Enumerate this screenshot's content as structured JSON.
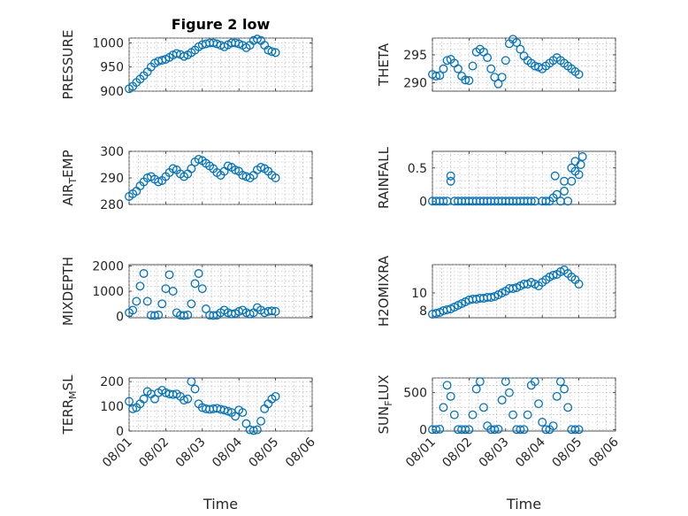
{
  "figure": {
    "accent_color": "#0072bd"
  },
  "chart_data": [
    {
      "type": "scatter",
      "title": "Figure 2 low",
      "ylabel": "PRESSURE",
      "xlabel": "",
      "ylim": [
        900,
        1010
      ],
      "yticks": [
        900,
        950,
        1000
      ],
      "xticks": [
        "08/01",
        "08/02",
        "08/03",
        "08/04",
        "08/05",
        "08/06"
      ],
      "show_xtick_labels": false,
      "grid": true,
      "x": [
        0,
        0.1,
        0.2,
        0.3,
        0.4,
        0.5,
        0.6,
        0.7,
        0.8,
        0.9,
        1.0,
        1.1,
        1.2,
        1.3,
        1.4,
        1.5,
        1.6,
        1.7,
        1.8,
        1.9,
        2.0,
        2.1,
        2.2,
        2.3,
        2.4,
        2.5,
        2.6,
        2.7,
        2.8,
        2.9,
        3.0,
        3.1,
        3.2,
        3.3,
        3.4,
        3.5,
        3.6,
        3.7,
        3.8,
        3.9,
        4.0
      ],
      "y": [
        905,
        910,
        918,
        925,
        932,
        940,
        950,
        958,
        962,
        964,
        966,
        970,
        975,
        978,
        976,
        972,
        975,
        980,
        985,
        992,
        996,
        998,
        1000,
        1000,
        998,
        995,
        992,
        996,
        1000,
        1000,
        998,
        995,
        990,
        995,
        1005,
        1008,
        1005,
        995,
        985,
        982,
        980
      ]
    },
    {
      "type": "scatter",
      "title": "",
      "ylabel": "THETA",
      "xlabel": "",
      "ylim": [
        288.5,
        298
      ],
      "yticks": [
        290,
        295
      ],
      "xticks": [
        "08/01",
        "08/02",
        "08/03",
        "08/04",
        "08/05",
        "08/06"
      ],
      "show_xtick_labels": false,
      "grid": true,
      "x": [
        0,
        0.1,
        0.2,
        0.3,
        0.4,
        0.5,
        0.6,
        0.7,
        0.8,
        0.9,
        1.0,
        1.1,
        1.2,
        1.3,
        1.4,
        1.5,
        1.6,
        1.7,
        1.8,
        1.9,
        2.0,
        2.1,
        2.2,
        2.3,
        2.4,
        2.5,
        2.6,
        2.7,
        2.8,
        2.9,
        3.0,
        3.1,
        3.2,
        3.3,
        3.4,
        3.5,
        3.6,
        3.7,
        3.8,
        3.9,
        4.0
      ],
      "y": [
        291.5,
        291.2,
        291.3,
        292.5,
        294,
        294.2,
        293.5,
        292.5,
        291.2,
        290.5,
        290.4,
        293,
        295.5,
        296,
        295.5,
        294.5,
        292.5,
        291,
        289.8,
        291,
        294,
        297,
        297.8,
        297.2,
        296,
        294.8,
        294,
        293.5,
        293,
        292.8,
        292.5,
        293,
        293.5,
        294,
        294.5,
        294,
        293.5,
        293,
        292.5,
        292,
        291.5
      ]
    },
    {
      "type": "scatter",
      "title": "",
      "ylabel": "AIR_TEMP",
      "xlabel": "",
      "ylim": [
        280,
        300
      ],
      "yticks": [
        280,
        290,
        300
      ],
      "xticks": [
        "08/01",
        "08/02",
        "08/03",
        "08/04",
        "08/05",
        "08/06"
      ],
      "show_xtick_labels": false,
      "grid": true,
      "x": [
        0,
        0.1,
        0.2,
        0.3,
        0.4,
        0.5,
        0.6,
        0.7,
        0.8,
        0.9,
        1.0,
        1.1,
        1.2,
        1.3,
        1.4,
        1.5,
        1.6,
        1.7,
        1.8,
        1.9,
        2.0,
        2.1,
        2.2,
        2.3,
        2.4,
        2.5,
        2.6,
        2.7,
        2.8,
        2.9,
        3.0,
        3.1,
        3.2,
        3.3,
        3.4,
        3.5,
        3.6,
        3.7,
        3.8,
        3.9,
        4.0
      ],
      "y": [
        283,
        284,
        285,
        287,
        288.5,
        290,
        290.5,
        289.5,
        288.5,
        289,
        290.5,
        292,
        293.5,
        293,
        291.5,
        290.5,
        291.5,
        293.5,
        296,
        297,
        296.5,
        295.5,
        294.5,
        293.5,
        292,
        291,
        292.5,
        294.5,
        294,
        293,
        292.5,
        291,
        290.5,
        290,
        291,
        293,
        294,
        293.5,
        292.5,
        291,
        290
      ]
    },
    {
      "type": "scatter",
      "title": "",
      "ylabel": "RAINFALL",
      "xlabel": "",
      "ylim": [
        -0.05,
        0.75
      ],
      "yticks": [
        0,
        0.5
      ],
      "xticks": [
        "08/01",
        "08/02",
        "08/03",
        "08/04",
        "08/05",
        "08/06"
      ],
      "show_xtick_labels": false,
      "grid": true,
      "x": [
        0,
        0.1,
        0.2,
        0.3,
        0.4,
        0.5,
        0.5,
        0.6,
        0.7,
        0.8,
        0.9,
        1.0,
        1.1,
        1.2,
        1.3,
        1.4,
        1.5,
        1.6,
        1.7,
        1.8,
        1.9,
        2.0,
        2.1,
        2.2,
        2.3,
        2.4,
        2.5,
        2.6,
        2.7,
        2.8,
        3.0,
        3.1,
        3.2,
        3.3,
        3.35,
        3.4,
        3.5,
        3.6,
        3.6,
        3.7,
        3.8,
        3.8,
        3.9,
        3.9,
        4.0,
        4.05,
        4.1
      ],
      "y": [
        0,
        0,
        0,
        0,
        0,
        0.3,
        0.38,
        0,
        0,
        0,
        0,
        0,
        0,
        0,
        0,
        0,
        0,
        0,
        0,
        0,
        0,
        0,
        0,
        0,
        0,
        0,
        0,
        0,
        0,
        0,
        0,
        0,
        0,
        0.05,
        0.38,
        0.1,
        0,
        0.3,
        0.15,
        0,
        0.5,
        0.3,
        0.45,
        0.6,
        0.4,
        0.55,
        0.67
      ]
    },
    {
      "type": "scatter",
      "title": "",
      "ylabel": "MIXDEPTH",
      "xlabel": "",
      "ylim": [
        -50,
        2050
      ],
      "yticks": [
        0,
        1000,
        2000
      ],
      "xticks": [
        "08/01",
        "08/02",
        "08/03",
        "08/04",
        "08/05",
        "08/06"
      ],
      "show_xtick_labels": false,
      "grid": true,
      "x": [
        0,
        0.1,
        0.2,
        0.3,
        0.4,
        0.5,
        0.6,
        0.7,
        0.8,
        0.9,
        1.0,
        1.1,
        1.2,
        1.3,
        1.4,
        1.5,
        1.6,
        1.7,
        1.8,
        1.9,
        2.0,
        2.1,
        2.2,
        2.3,
        2.4,
        2.5,
        2.6,
        2.7,
        2.8,
        2.9,
        3.0,
        3.1,
        3.2,
        3.3,
        3.4,
        3.5,
        3.6,
        3.7,
        3.8,
        3.9,
        4.0
      ],
      "y": [
        150,
        250,
        600,
        1200,
        1700,
        600,
        50,
        40,
        60,
        500,
        1100,
        1650,
        1000,
        150,
        50,
        40,
        60,
        500,
        1300,
        1700,
        1100,
        300,
        50,
        40,
        50,
        150,
        250,
        150,
        100,
        120,
        200,
        250,
        150,
        100,
        150,
        350,
        250,
        150,
        200,
        220,
        200
      ]
    },
    {
      "type": "scatter",
      "title": "",
      "ylabel": "H2OMIXRA",
      "xlabel": "",
      "ylim": [
        7.2,
        13.2
      ],
      "yticks": [
        8,
        10
      ],
      "xticks": [
        "08/01",
        "08/02",
        "08/03",
        "08/04",
        "08/05",
        "08/06"
      ],
      "show_xtick_labels": false,
      "grid": true,
      "x": [
        0,
        0.1,
        0.2,
        0.3,
        0.4,
        0.5,
        0.6,
        0.7,
        0.8,
        0.9,
        1.0,
        1.1,
        1.2,
        1.3,
        1.4,
        1.5,
        1.6,
        1.7,
        1.8,
        1.9,
        2.0,
        2.1,
        2.2,
        2.3,
        2.4,
        2.5,
        2.6,
        2.7,
        2.8,
        2.9,
        3.0,
        3.1,
        3.2,
        3.3,
        3.4,
        3.5,
        3.6,
        3.7,
        3.8,
        3.9,
        4.0
      ],
      "y": [
        7.6,
        7.7,
        7.8,
        8.0,
        8.1,
        8.2,
        8.4,
        8.6,
        8.8,
        9.0,
        9.2,
        9.3,
        9.3,
        9.4,
        9.4,
        9.5,
        9.5,
        9.6,
        9.8,
        10.0,
        10.2,
        10.5,
        10.5,
        10.6,
        10.8,
        11.0,
        11.0,
        11.2,
        11.0,
        10.8,
        11.2,
        11.5,
        11.8,
        12.0,
        12.1,
        12.4,
        12.6,
        12.2,
        11.8,
        11.5,
        11.0
      ]
    },
    {
      "type": "scatter",
      "title": "",
      "ylabel": "TERR_MSL",
      "xlabel": "Time",
      "ylim": [
        0,
        215
      ],
      "yticks": [
        0,
        100,
        200
      ],
      "xticks": [
        "08/01",
        "08/02",
        "08/03",
        "08/04",
        "08/05",
        "08/06"
      ],
      "show_xtick_labels": true,
      "grid": true,
      "x": [
        0,
        0.1,
        0.2,
        0.3,
        0.4,
        0.5,
        0.6,
        0.7,
        0.8,
        0.9,
        1.0,
        1.1,
        1.2,
        1.3,
        1.4,
        1.5,
        1.6,
        1.7,
        1.8,
        1.9,
        2.0,
        2.1,
        2.2,
        2.3,
        2.4,
        2.5,
        2.6,
        2.7,
        2.8,
        2.9,
        3.0,
        3.1,
        3.2,
        3.3,
        3.4,
        3.5,
        3.6,
        3.7,
        3.8,
        3.9,
        4.0
      ],
      "y": [
        120,
        90,
        95,
        110,
        130,
        160,
        150,
        130,
        155,
        165,
        155,
        150,
        148,
        150,
        140,
        125,
        130,
        200,
        170,
        110,
        95,
        90,
        88,
        90,
        92,
        88,
        85,
        80,
        75,
        60,
        85,
        75,
        30,
        5,
        2,
        5,
        40,
        90,
        110,
        130,
        140
      ]
    },
    {
      "type": "scatter",
      "title": "",
      "ylabel": "SUN_FLUX",
      "xlabel": "Time",
      "ylim": [
        -20,
        700
      ],
      "yticks": [
        0,
        500
      ],
      "xticks": [
        "08/01",
        "08/02",
        "08/03",
        "08/04",
        "08/05",
        "08/06"
      ],
      "show_xtick_labels": true,
      "grid": true,
      "x": [
        0,
        0.1,
        0.2,
        0.3,
        0.4,
        0.5,
        0.6,
        0.7,
        0.8,
        0.9,
        1.0,
        1.1,
        1.2,
        1.3,
        1.4,
        1.5,
        1.6,
        1.7,
        1.8,
        1.9,
        2.0,
        2.1,
        2.2,
        2.3,
        2.4,
        2.5,
        2.6,
        2.7,
        2.8,
        2.9,
        3.0,
        3.1,
        3.2,
        3.3,
        3.4,
        3.5,
        3.6,
        3.7,
        3.8,
        3.9,
        4.0
      ],
      "y": [
        0,
        0,
        5,
        300,
        600,
        450,
        200,
        0,
        0,
        0,
        0,
        200,
        550,
        650,
        300,
        50,
        0,
        0,
        5,
        400,
        650,
        500,
        200,
        0,
        0,
        0,
        200,
        600,
        650,
        350,
        100,
        0,
        0,
        50,
        450,
        650,
        550,
        300,
        0,
        0,
        0
      ]
    }
  ]
}
